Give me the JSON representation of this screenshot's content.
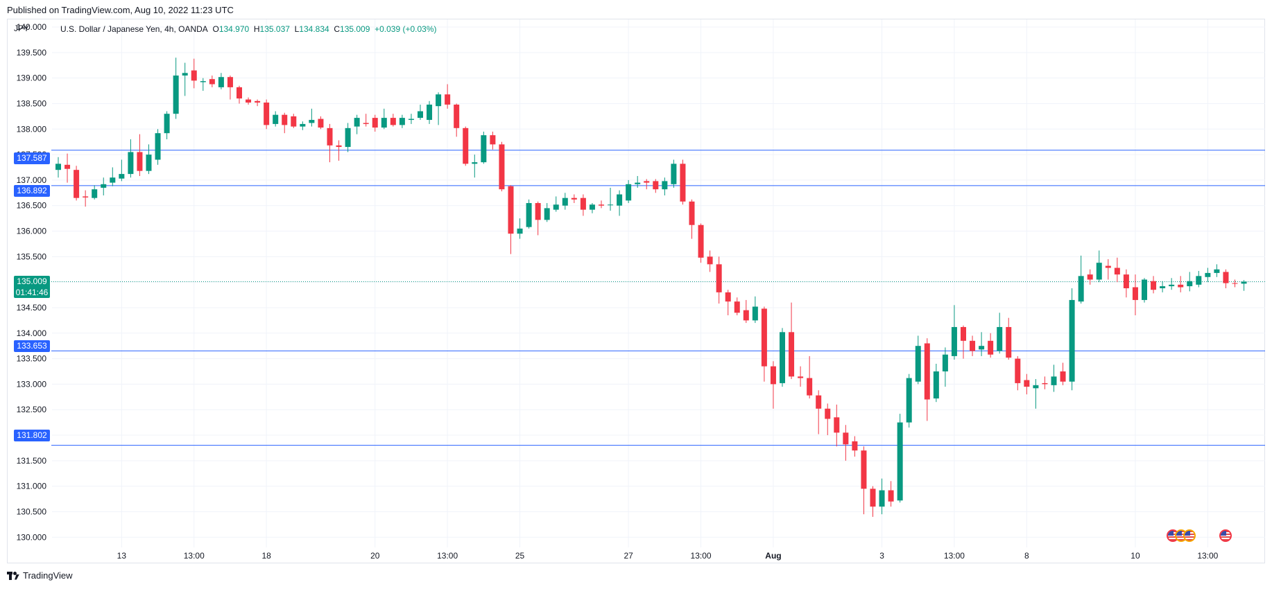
{
  "header": {
    "published": "Published on TradingView.com, Aug 10, 2022 11:23 UTC",
    "currency": "JPY"
  },
  "legend": {
    "symbol": "U.S. Dollar / Japanese Yen, 4h, OANDA",
    "open_label": "O",
    "open": "134.970",
    "high_label": "H",
    "high": "135.037",
    "low_label": "L",
    "low": "134.834",
    "close_label": "C",
    "close": "135.009",
    "change": "+0.039 (+0.03%)"
  },
  "tags": {
    "level1": "137.587",
    "level2": "136.892",
    "price": "135.009",
    "countdown": "01:41:46",
    "level3": "133.653",
    "level4": "131.802"
  },
  "footer": {
    "brand": "TradingView"
  },
  "flag_icons": [
    "us-flag-icon",
    "us-flag-icon",
    "us-flag-icon",
    "us-flag-icon"
  ],
  "colors": {
    "up": "#089981",
    "down": "#f23645",
    "level_line": "#2962ff",
    "price_line": "#089981",
    "grid": "#f0f3fa",
    "axis_text": "#131722"
  },
  "chart_data": {
    "type": "candlestick",
    "title": "U.S. Dollar / Japanese Yen, 4h, OANDA",
    "ylabel": "",
    "xlabel": "",
    "ylim": [
      129.8,
      140.15
    ],
    "y_ticks": [
      "140.000",
      "139.500",
      "139.000",
      "138.500",
      "138.000",
      "137.500",
      "137.000",
      "136.500",
      "136.000",
      "135.500",
      "135.000",
      "134.500",
      "134.000",
      "133.500",
      "133.000",
      "132.500",
      "132.000",
      "131.500",
      "131.000",
      "130.500",
      "130.000"
    ],
    "x_ticks": [
      {
        "label": "13",
        "index": 7
      },
      {
        "label": "13:00",
        "index": 15
      },
      {
        "label": "18",
        "index": 23
      },
      {
        "label": "20",
        "index": 35
      },
      {
        "label": "13:00",
        "index": 43
      },
      {
        "label": "25",
        "index": 51
      },
      {
        "label": "27",
        "index": 63
      },
      {
        "label": "13:00",
        "index": 71
      },
      {
        "label": "Aug",
        "index": 79
      },
      {
        "label": "3",
        "index": 91
      },
      {
        "label": "13:00",
        "index": 99
      },
      {
        "label": "8",
        "index": 107
      },
      {
        "label": "10",
        "index": 119
      },
      {
        "label": "13:00",
        "index": 127
      }
    ],
    "horizontal_levels": [
      137.587,
      136.892,
      133.653,
      131.802
    ],
    "last_price": 135.009,
    "candles": [
      [
        137.2,
        137.32,
        137.45,
        137.05
      ],
      [
        137.3,
        137.22,
        137.52,
        136.95
      ],
      [
        137.2,
        136.65,
        137.28,
        136.6
      ],
      [
        136.68,
        136.66,
        136.8,
        136.48
      ],
      [
        136.65,
        136.82,
        136.9,
        136.62
      ],
      [
        136.85,
        136.92,
        137.05,
        136.7
      ],
      [
        136.95,
        137.05,
        137.25,
        136.88
      ],
      [
        137.03,
        137.12,
        137.4,
        136.98
      ],
      [
        137.12,
        137.55,
        137.8,
        137.05
      ],
      [
        137.55,
        137.18,
        137.9,
        137.08
      ],
      [
        137.18,
        137.5,
        137.7,
        137.12
      ],
      [
        137.4,
        137.92,
        138.0,
        137.3
      ],
      [
        137.92,
        138.3,
        138.35,
        137.8
      ],
      [
        138.3,
        139.05,
        139.4,
        138.2
      ],
      [
        139.05,
        139.1,
        139.3,
        138.65
      ],
      [
        139.15,
        138.95,
        139.38,
        138.8
      ],
      [
        138.92,
        138.94,
        139.0,
        138.75
      ],
      [
        138.98,
        138.88,
        139.05,
        138.82
      ],
      [
        138.82,
        139.02,
        139.1,
        138.78
      ],
      [
        139.02,
        138.82,
        139.05,
        138.58
      ],
      [
        138.82,
        138.6,
        138.85,
        138.5
      ],
      [
        138.58,
        138.52,
        138.62,
        138.48
      ],
      [
        138.55,
        138.52,
        138.58,
        138.45
      ],
      [
        138.52,
        138.08,
        138.58,
        138.0
      ],
      [
        138.1,
        138.28,
        138.35,
        138.05
      ],
      [
        138.28,
        138.08,
        138.32,
        137.92
      ],
      [
        138.25,
        138.05,
        138.3,
        138.02
      ],
      [
        138.05,
        138.1,
        138.15,
        137.98
      ],
      [
        138.12,
        138.18,
        138.4,
        138.05
      ],
      [
        138.2,
        138.03,
        138.25,
        138.0
      ],
      [
        138.02,
        137.68,
        138.1,
        137.35
      ],
      [
        137.68,
        137.65,
        137.78,
        137.38
      ],
      [
        137.65,
        138.02,
        138.12,
        137.55
      ],
      [
        138.05,
        138.22,
        138.28,
        137.9
      ],
      [
        138.12,
        138.1,
        138.3,
        138.05
      ],
      [
        138.22,
        138.03,
        138.28,
        137.95
      ],
      [
        138.03,
        138.22,
        138.4,
        138.0
      ],
      [
        138.22,
        138.08,
        138.3,
        138.05
      ],
      [
        138.08,
        138.22,
        138.28,
        138.02
      ],
      [
        138.18,
        138.2,
        138.3,
        138.1
      ],
      [
        138.22,
        138.35,
        138.48,
        138.18
      ],
      [
        138.18,
        138.48,
        138.55,
        138.1
      ],
      [
        138.45,
        138.68,
        138.72,
        138.08
      ],
      [
        138.68,
        138.48,
        138.88,
        138.4
      ],
      [
        138.48,
        138.02,
        138.5,
        137.85
      ],
      [
        138.02,
        137.32,
        138.05,
        137.28
      ],
      [
        137.32,
        137.35,
        137.5,
        137.05
      ],
      [
        137.35,
        137.88,
        137.95,
        137.32
      ],
      [
        137.88,
        137.7,
        137.95,
        137.6
      ],
      [
        137.7,
        136.82,
        137.75,
        136.78
      ],
      [
        136.88,
        135.95,
        136.9,
        135.55
      ],
      [
        135.95,
        136.05,
        136.25,
        135.85
      ],
      [
        136.08,
        136.55,
        136.62,
        136.05
      ],
      [
        136.55,
        136.22,
        136.58,
        135.92
      ],
      [
        136.22,
        136.45,
        136.55,
        136.18
      ],
      [
        136.42,
        136.52,
        136.68,
        136.38
      ],
      [
        136.5,
        136.65,
        136.75,
        136.42
      ],
      [
        136.65,
        136.62,
        136.72,
        136.55
      ],
      [
        136.65,
        136.42,
        136.72,
        136.3
      ],
      [
        136.42,
        136.52,
        136.55,
        136.35
      ],
      [
        136.52,
        136.5,
        136.6,
        136.45
      ],
      [
        136.52,
        136.52,
        136.85,
        136.4
      ],
      [
        136.5,
        136.72,
        136.8,
        136.3
      ],
      [
        136.6,
        136.92,
        137.0,
        136.55
      ],
      [
        136.92,
        136.95,
        137.08,
        136.85
      ],
      [
        136.98,
        136.95,
        137.02,
        136.82
      ],
      [
        136.98,
        136.82,
        137.02,
        136.75
      ],
      [
        136.82,
        136.98,
        137.05,
        136.7
      ],
      [
        136.92,
        137.32,
        137.4,
        136.85
      ],
      [
        137.32,
        136.58,
        137.4,
        136.52
      ],
      [
        136.58,
        136.12,
        136.62,
        135.85
      ],
      [
        136.12,
        135.48,
        136.15,
        135.38
      ],
      [
        135.5,
        135.35,
        135.62,
        135.2
      ],
      [
        135.35,
        134.8,
        135.5,
        134.58
      ],
      [
        134.8,
        134.62,
        134.85,
        134.35
      ],
      [
        134.62,
        134.4,
        134.7,
        134.35
      ],
      [
        134.45,
        134.25,
        134.65,
        134.2
      ],
      [
        134.25,
        134.52,
        134.72,
        134.2
      ],
      [
        134.48,
        133.35,
        134.52,
        133.05
      ],
      [
        133.35,
        133.0,
        133.45,
        132.52
      ],
      [
        133.02,
        134.02,
        134.1,
        132.95
      ],
      [
        134.02,
        133.15,
        134.6,
        133.1
      ],
      [
        133.15,
        133.12,
        133.35,
        132.95
      ],
      [
        133.12,
        132.78,
        133.55,
        132.72
      ],
      [
        132.78,
        132.52,
        132.88,
        132.02
      ],
      [
        132.52,
        132.32,
        132.62,
        132.0
      ],
      [
        132.35,
        132.05,
        132.6,
        131.78
      ],
      [
        132.05,
        131.82,
        132.2,
        131.5
      ],
      [
        131.88,
        131.7,
        131.98,
        131.58
      ],
      [
        131.7,
        130.95,
        131.78,
        130.45
      ],
      [
        130.95,
        130.6,
        131.0,
        130.4
      ],
      [
        130.6,
        130.92,
        131.15,
        130.45
      ],
      [
        130.92,
        130.7,
        131.1,
        130.6
      ],
      [
        130.72,
        132.25,
        132.42,
        130.68
      ],
      [
        132.25,
        133.12,
        133.2,
        132.15
      ],
      [
        133.05,
        133.75,
        133.95,
        133.0
      ],
      [
        133.8,
        132.7,
        133.9,
        132.28
      ],
      [
        132.72,
        133.25,
        133.4,
        132.65
      ],
      [
        133.25,
        133.58,
        133.72,
        132.95
      ],
      [
        133.55,
        134.12,
        134.55,
        133.48
      ],
      [
        134.12,
        133.85,
        134.15,
        133.5
      ],
      [
        133.85,
        133.65,
        133.95,
        133.55
      ],
      [
        133.68,
        133.75,
        134.02,
        133.55
      ],
      [
        133.85,
        133.58,
        134.0,
        133.52
      ],
      [
        133.65,
        134.12,
        134.4,
        133.6
      ],
      [
        134.12,
        133.52,
        134.3,
        133.48
      ],
      [
        133.5,
        133.02,
        133.55,
        132.88
      ],
      [
        133.08,
        132.95,
        133.2,
        132.8
      ],
      [
        132.92,
        132.98,
        133.1,
        132.52
      ],
      [
        133.02,
        133.0,
        133.15,
        132.9
      ],
      [
        132.98,
        133.15,
        133.38,
        132.85
      ],
      [
        133.25,
        133.05,
        133.42,
        132.98
      ],
      [
        133.05,
        134.65,
        134.88,
        132.88
      ],
      [
        134.62,
        135.12,
        135.52,
        134.58
      ],
      [
        135.15,
        135.05,
        135.25,
        134.95
      ],
      [
        135.05,
        135.38,
        135.62,
        135.0
      ],
      [
        135.32,
        135.28,
        135.45,
        135.05
      ],
      [
        135.28,
        135.15,
        135.48,
        135.0
      ],
      [
        135.15,
        134.88,
        135.25,
        134.7
      ],
      [
        134.9,
        134.65,
        135.15,
        134.35
      ],
      [
        134.65,
        135.05,
        135.08,
        134.6
      ],
      [
        135.02,
        134.85,
        135.12,
        134.78
      ],
      [
        134.88,
        134.92,
        135.02,
        134.8
      ],
      [
        134.92,
        134.95,
        135.08,
        134.85
      ],
      [
        134.95,
        134.9,
        135.12,
        134.8
      ],
      [
        134.92,
        135.02,
        135.2,
        134.82
      ],
      [
        134.95,
        135.12,
        135.22,
        134.9
      ],
      [
        135.1,
        135.18,
        135.28,
        135.0
      ],
      [
        135.18,
        135.25,
        135.35,
        135.1
      ],
      [
        135.2,
        134.98,
        135.25,
        134.88
      ],
      [
        134.98,
        134.97,
        135.05,
        134.9
      ],
      [
        134.97,
        135.01,
        135.04,
        134.83
      ]
    ]
  }
}
